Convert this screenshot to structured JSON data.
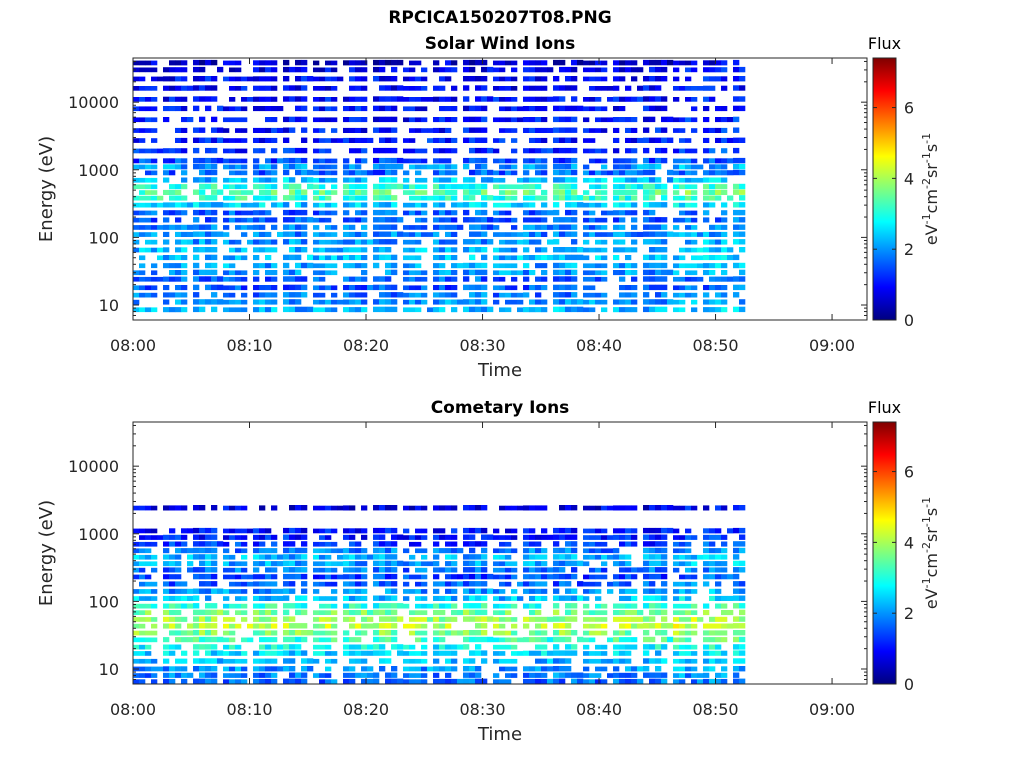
{
  "figure": {
    "title": "RPCICA150207T08.PNG"
  },
  "colormap": {
    "name": "jet",
    "stops": [
      "#00007f",
      "#0000ff",
      "#007fff",
      "#00ffff",
      "#7fff7f",
      "#ffff00",
      "#ff7f00",
      "#ff0000",
      "#7f0000"
    ]
  },
  "chart_data": [
    {
      "type": "heatmap",
      "title": "Solar Wind Ions",
      "xlabel": "Time",
      "ylabel": "Energy (eV)",
      "x_ticks": [
        "08:00",
        "08:10",
        "08:20",
        "08:30",
        "08:40",
        "08:50",
        "09:00"
      ],
      "xlim_minutes": [
        0,
        63
      ],
      "data_end_minutes": 52.5,
      "y_scale": "log",
      "ylim": [
        6,
        45000
      ],
      "y_ticks": [
        10,
        100,
        1000,
        10000
      ],
      "y_tick_labels": [
        "10",
        "100",
        "1000",
        "10000"
      ],
      "colorbar": {
        "title": "Flux",
        "label": "eV-1cm-2sr-1s-1",
        "range": [
          0,
          7.4
        ],
        "ticks": [
          "0",
          "2",
          "4",
          "6"
        ]
      },
      "profile": [
        {
          "energy": 38000,
          "flux": 0.6
        },
        {
          "energy": 30000,
          "flux": 0.8
        },
        {
          "energy": 22000,
          "flux": 0.9
        },
        {
          "energy": 16000,
          "flux": 0.9
        },
        {
          "energy": 11000,
          "flux": 1.0
        },
        {
          "energy": 8000,
          "flux": 1.0
        },
        {
          "energy": 5500,
          "flux": 1.0
        },
        {
          "energy": 3800,
          "flux": 1.0
        },
        {
          "energy": 2700,
          "flux": 1.1
        },
        {
          "energy": 1900,
          "flux": 1.2
        },
        {
          "energy": 1350,
          "flux": 1.4
        },
        {
          "energy": 1100,
          "flux": 2.0
        },
        {
          "energy": 900,
          "flux": 1.6
        },
        {
          "energy": 700,
          "flux": 2.3
        },
        {
          "energy": 560,
          "flux": 3.0
        },
        {
          "energy": 460,
          "flux": 3.4
        },
        {
          "energy": 380,
          "flux": 3.1
        },
        {
          "energy": 300,
          "flux": 2.4
        },
        {
          "energy": 230,
          "flux": 1.6
        },
        {
          "energy": 180,
          "flux": 1.5
        },
        {
          "energy": 140,
          "flux": 1.8
        },
        {
          "energy": 110,
          "flux": 1.9
        },
        {
          "energy": 85,
          "flux": 2.0
        },
        {
          "energy": 65,
          "flux": 2.2
        },
        {
          "energy": 50,
          "flux": 2.3
        },
        {
          "energy": 38,
          "flux": 2.1
        },
        {
          "energy": 30,
          "flux": 2.0
        },
        {
          "energy": 24,
          "flux": 1.6
        },
        {
          "energy": 18,
          "flux": 1.5
        },
        {
          "energy": 14,
          "flux": 1.8
        },
        {
          "energy": 11,
          "flux": 2.0
        },
        {
          "energy": 8.5,
          "flux": 2.2
        }
      ]
    },
    {
      "type": "heatmap",
      "title": "Cometary Ions",
      "xlabel": "Time",
      "ylabel": "Energy (eV)",
      "x_ticks": [
        "08:00",
        "08:10",
        "08:20",
        "08:30",
        "08:40",
        "08:50",
        "09:00"
      ],
      "xlim_minutes": [
        0,
        63
      ],
      "data_end_minutes": 52.5,
      "y_scale": "log",
      "ylim": [
        6,
        45000
      ],
      "y_ticks": [
        10,
        100,
        1000,
        10000
      ],
      "y_tick_labels": [
        "10",
        "100",
        "1000",
        "10000"
      ],
      "colorbar": {
        "title": "Flux",
        "label": "eV-1cm-2sr-1s-1",
        "range": [
          0,
          7.4
        ],
        "ticks": [
          "0",
          "2",
          "4",
          "6"
        ]
      },
      "profile": [
        {
          "energy": 2400,
          "flux": 0.8
        },
        {
          "energy": 1100,
          "flux": 1.0
        },
        {
          "energy": 880,
          "flux": 1.1
        },
        {
          "energy": 700,
          "flux": 1.3
        },
        {
          "energy": 560,
          "flux": 1.8
        },
        {
          "energy": 450,
          "flux": 2.2
        },
        {
          "energy": 360,
          "flux": 2.1
        },
        {
          "energy": 290,
          "flux": 1.7
        },
        {
          "energy": 230,
          "flux": 1.4
        },
        {
          "energy": 180,
          "flux": 1.6
        },
        {
          "energy": 140,
          "flux": 2.0
        },
        {
          "energy": 110,
          "flux": 2.3
        },
        {
          "energy": 85,
          "flux": 3.0
        },
        {
          "energy": 68,
          "flux": 3.6
        },
        {
          "energy": 54,
          "flux": 3.9
        },
        {
          "energy": 43,
          "flux": 4.1
        },
        {
          "energy": 34,
          "flux": 3.7
        },
        {
          "energy": 27,
          "flux": 3.2
        },
        {
          "energy": 21,
          "flux": 2.8
        },
        {
          "energy": 17,
          "flux": 2.5
        },
        {
          "energy": 13,
          "flux": 2.2
        },
        {
          "energy": 10,
          "flux": 2.0
        },
        {
          "energy": 8,
          "flux": 1.8
        },
        {
          "energy": 6.5,
          "flux": 1.7
        }
      ]
    }
  ]
}
